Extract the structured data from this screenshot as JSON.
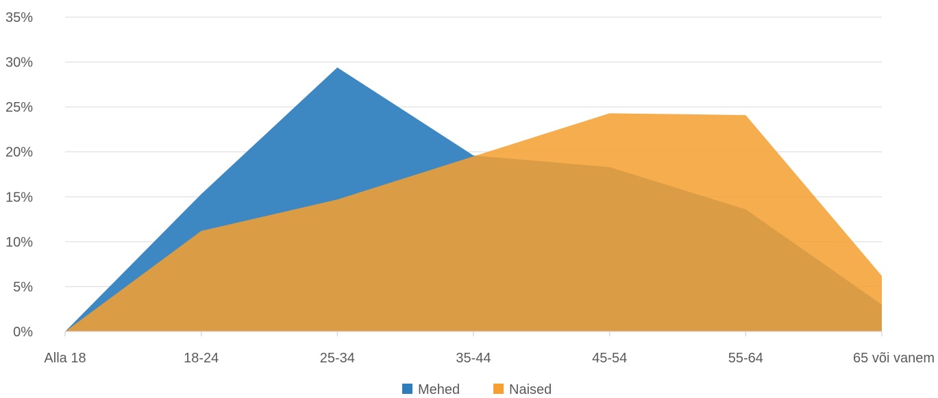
{
  "chart_data": {
    "type": "area",
    "categories": [
      "Alla 18",
      "18-24",
      "25-34",
      "35-44",
      "45-54",
      "55-64",
      "65 või vanem"
    ],
    "series": [
      {
        "name": "Mehed",
        "values": [
          0,
          15.3,
          29.4,
          19.6,
          18.3,
          13.6,
          3.0
        ],
        "color": "#2e7ebe"
      },
      {
        "name": "Naised",
        "values": [
          0,
          11.2,
          14.7,
          19.5,
          24.3,
          24.1,
          6.2
        ],
        "color": "#f5a030"
      }
    ],
    "ylim": [
      0,
      35
    ],
    "ytick_labels": [
      "0%",
      "5%",
      "10%",
      "15%",
      "20%",
      "25%",
      "30%",
      "35%"
    ],
    "grid": true,
    "legend": "bottom-center"
  }
}
